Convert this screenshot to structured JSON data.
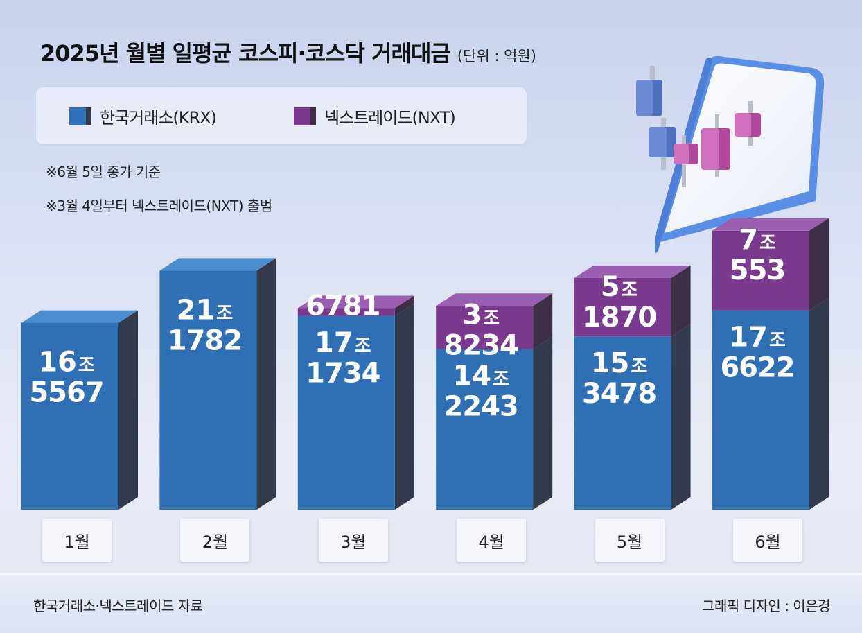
{
  "title": "2025년 월별 일평균 코스피·코스닥 거래대금",
  "unit": "(단위 : 억원)",
  "legend": {
    "krx": "한국거래소(KRX)",
    "nxt": "넥스트레이드(NXT)"
  },
  "notes": [
    "※6월 5일 종가 기준",
    "※3월 4일부터 넥스트레이드(NXT) 출범"
  ],
  "source": "한국거래소·넥스트레이드 자료",
  "credit": "그래픽 디자인 : 이은경",
  "colors": {
    "krx_front": "#2f6fb3",
    "krx_side": "#333a4c",
    "krx_top": "#4a8ed0",
    "nxt_front": "#7a3b8f",
    "nxt_side": "#3c2f46",
    "nxt_top": "#9a5fb0"
  },
  "chart_data": {
    "type": "bar",
    "stacked": true,
    "categories": [
      "1월",
      "2월",
      "3월",
      "4월",
      "5월",
      "6월"
    ],
    "series": [
      {
        "name": "한국거래소(KRX)",
        "values": [
          165567,
          211782,
          171734,
          142243,
          153478,
          176622
        ],
        "labels": [
          [
            "16",
            "5567"
          ],
          [
            "21",
            "1782"
          ],
          [
            "17",
            "1734"
          ],
          [
            "14",
            "2243"
          ],
          [
            "15",
            "3478"
          ],
          [
            "17",
            "6622"
          ]
        ]
      },
      {
        "name": "넥스트레이드(NXT)",
        "values": [
          0,
          0,
          6781,
          38234,
          51870,
          70553
        ],
        "labels": [
          [],
          [],
          [
            "",
            "6781"
          ],
          [
            "3",
            "8234"
          ],
          [
            "5",
            "1870"
          ],
          [
            "7",
            "553"
          ]
        ]
      }
    ],
    "trillion_unit": "조",
    "ylim": [
      0,
      280000
    ]
  }
}
